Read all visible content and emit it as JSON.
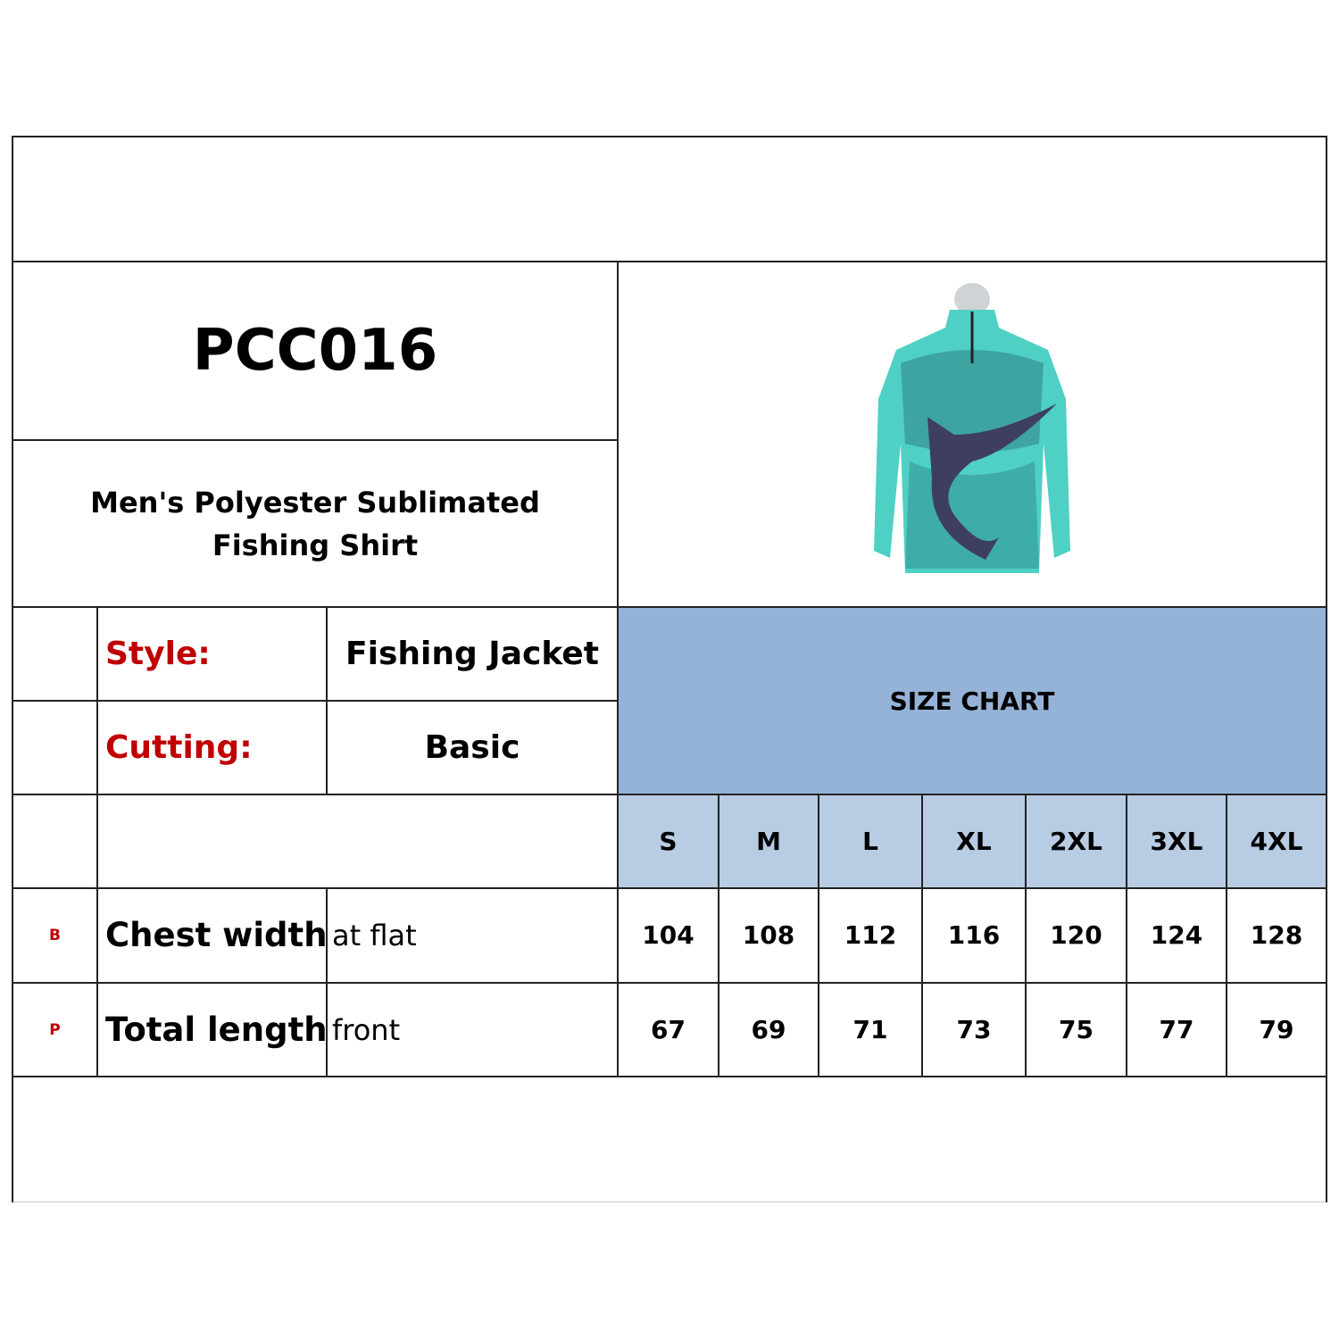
{
  "product": {
    "code": "PCC016",
    "name": "Men's Polyester Sublimated Fishing Shirt",
    "image_alt": "teal camouflage long-sleeve fishing shirt with marlin print"
  },
  "specs": [
    {
      "label": "Style:",
      "value": "Fishing Jacket"
    },
    {
      "label": "Cutting:",
      "value": "Basic"
    }
  ],
  "size_chart": {
    "title": "SIZE CHART",
    "sizes": [
      "S",
      "M",
      "L",
      "XL",
      "2XL",
      "3XL",
      "4XL"
    ],
    "rows": [
      {
        "code": "B",
        "measure": "Chest width",
        "note": "at flat",
        "values": [
          "104",
          "108",
          "112",
          "116",
          "120",
          "124",
          "128"
        ]
      },
      {
        "code": "P",
        "measure": "Total length",
        "note": "front",
        "values": [
          "67",
          "69",
          "71",
          "73",
          "75",
          "77",
          "79"
        ]
      }
    ]
  },
  "colors": {
    "header_blue": "#95b3d7",
    "size_row_blue": "#b8cce4",
    "label_red": "#c00000"
  }
}
